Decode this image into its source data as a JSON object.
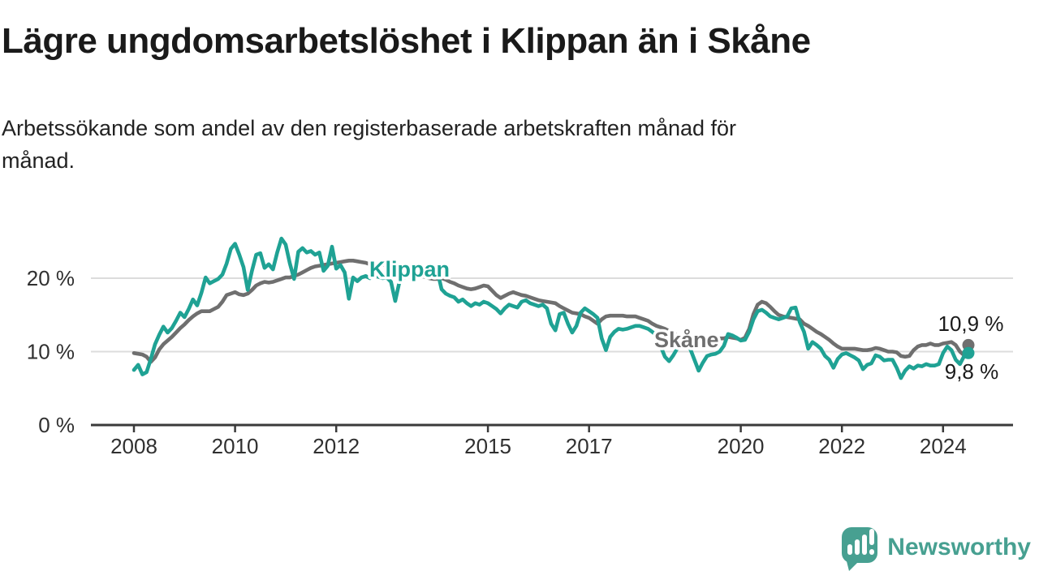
{
  "title": "Lägre ungdomsarbetslöshet i Klippan än i Skåne",
  "subtitle_lines": [
    "Arbetssökande som andel av den registerbaserade arbetskraften månad för",
    "månad."
  ],
  "branding": {
    "name": "Newsworthy",
    "logo_icon": "bar-chart-speech-bubble-icon",
    "color": "#47A091"
  },
  "colors": {
    "klippan": "#1FA294",
    "skane": "#6F6F6F",
    "grid": "#DCDCDC",
    "axis": "#3A3A3A",
    "text": "#1A1A1A"
  },
  "chart_data": {
    "type": "line",
    "title": "Lägre ungdomsarbetslöshet i Klippan än i Skåne",
    "xlabel": "",
    "ylabel": "Arbetssökande som andel av den registerbaserade arbetskraften, %",
    "x_unit": "month",
    "x_start_year": 2008,
    "x_end": "2024-07",
    "ylim": [
      0,
      27
    ],
    "grid": "horizontal",
    "x_axis_ticks": [
      2008,
      2010,
      2012,
      2015,
      2017,
      2020,
      2022,
      2024
    ],
    "y_ticks": [
      {
        "label": "0 %",
        "value": 0
      },
      {
        "label": "10 %",
        "value": 10
      },
      {
        "label": "20 %",
        "value": 20
      }
    ],
    "series": [
      {
        "name": "Klippan",
        "color": "#1FA294",
        "end_label": "9,8 %",
        "end_value": 9.8,
        "values": [
          7.5,
          8.2,
          6.9,
          7.2,
          9.0,
          11.0,
          12.3,
          13.4,
          12.6,
          13.2,
          14.2,
          15.3,
          14.7,
          15.8,
          17.1,
          16.3,
          18.0,
          20.1,
          19.3,
          19.6,
          19.9,
          20.5,
          22.0,
          24.0,
          24.7,
          23.2,
          21.5,
          18.4,
          21.0,
          23.2,
          23.4,
          21.4,
          21.9,
          21.2,
          23.5,
          25.4,
          24.6,
          22.0,
          19.9,
          23.6,
          24.1,
          23.5,
          23.7,
          23.2,
          23.5,
          21.0,
          21.7,
          24.3,
          21.3,
          21.8,
          20.8,
          17.2,
          20.1,
          19.6,
          20.1,
          20.3,
          20.0,
          20.5,
          20.2,
          20.0,
          20.1,
          19.5,
          16.9,
          19.5,
          20.0,
          20.2,
          20.4,
          20.3,
          20.1,
          20.4,
          20.6,
          20.8,
          21.0,
          18.5,
          17.9,
          17.6,
          17.4,
          16.8,
          17.1,
          16.6,
          16.2,
          16.6,
          16.4,
          16.8,
          16.6,
          16.2,
          15.8,
          15.2,
          15.9,
          16.4,
          16.2,
          16.0,
          16.8,
          17.0,
          16.6,
          16.4,
          16.2,
          16.4,
          15.9,
          13.8,
          12.9,
          15.1,
          15.3,
          13.8,
          12.6,
          13.5,
          15.3,
          15.9,
          15.5,
          15.1,
          14.6,
          11.8,
          10.2,
          12.0,
          12.7,
          13.1,
          13.0,
          13.1,
          13.3,
          13.5,
          13.5,
          13.3,
          13.1,
          12.7,
          12.2,
          10.7,
          9.3,
          8.7,
          9.5,
          10.5,
          11.0,
          10.8,
          10.4,
          8.9,
          7.4,
          8.5,
          9.4,
          9.6,
          9.7,
          10.0,
          10.8,
          12.4,
          12.2,
          11.9,
          11.5,
          11.6,
          12.7,
          14.4,
          15.5,
          15.7,
          15.3,
          14.8,
          14.6,
          14.4,
          14.6,
          14.8,
          15.9,
          16.0,
          14.0,
          12.7,
          10.4,
          11.3,
          10.9,
          10.4,
          9.4,
          8.9,
          7.8,
          9.0,
          9.6,
          9.8,
          9.5,
          9.2,
          8.8,
          7.6,
          8.2,
          8.4,
          9.5,
          9.3,
          8.8,
          8.9,
          8.9,
          7.8,
          6.4,
          7.4,
          8.0,
          7.7,
          8.1,
          8.0,
          8.3,
          8.1,
          8.1,
          8.3,
          9.8,
          10.7,
          10.2,
          8.9,
          8.3,
          9.4,
          9.8
        ]
      },
      {
        "name": "Skåne",
        "color": "#6F6F6F",
        "end_label": "10,9 %",
        "end_value": 10.9,
        "values": [
          9.8,
          9.7,
          9.6,
          9.3,
          8.6,
          9.2,
          10.3,
          11.0,
          11.5,
          12.0,
          12.6,
          13.2,
          13.7,
          14.3,
          14.8,
          15.2,
          15.5,
          15.5,
          15.5,
          15.8,
          16.1,
          16.8,
          17.7,
          17.9,
          18.1,
          17.8,
          17.7,
          17.9,
          18.4,
          19.0,
          19.3,
          19.5,
          19.4,
          19.5,
          19.7,
          19.9,
          20.1,
          20.1,
          20.3,
          20.5,
          20.8,
          21.1,
          21.4,
          21.6,
          21.7,
          21.8,
          21.9,
          22.0,
          22.1,
          22.2,
          22.3,
          22.4,
          22.4,
          22.3,
          22.2,
          22.1,
          21.9,
          21.8,
          21.7,
          21.8,
          21.9,
          21.7,
          21.5,
          21.3,
          21.2,
          21.0,
          20.8,
          20.6,
          20.4,
          20.2,
          20.0,
          19.9,
          19.9,
          20.0,
          19.8,
          19.5,
          19.3,
          19.0,
          18.8,
          18.6,
          18.5,
          18.6,
          18.8,
          19.0,
          18.9,
          18.3,
          17.7,
          17.3,
          17.6,
          17.9,
          18.1,
          17.9,
          17.7,
          17.6,
          17.4,
          17.2,
          17.0,
          16.9,
          16.8,
          16.7,
          16.6,
          16.2,
          15.9,
          15.6,
          15.3,
          15.2,
          15.1,
          14.8,
          14.6,
          14.2,
          13.8,
          14.4,
          14.8,
          14.9,
          14.9,
          14.9,
          14.9,
          14.8,
          14.8,
          14.8,
          14.6,
          14.4,
          14.2,
          13.8,
          13.5,
          13.3,
          13.1,
          12.8,
          12.5,
          12.2,
          12.0,
          11.9,
          11.8,
          11.7,
          11.6,
          11.5,
          11.5,
          11.6,
          11.7,
          11.8,
          11.8,
          12.0,
          11.9,
          11.8,
          11.6,
          11.9,
          13.1,
          15.1,
          16.4,
          16.8,
          16.6,
          16.1,
          15.5,
          15.0,
          14.8,
          14.7,
          14.6,
          14.5,
          14.4,
          13.8,
          13.5,
          13.1,
          12.7,
          12.4,
          12.0,
          11.6,
          11.1,
          10.7,
          10.4,
          10.4,
          10.4,
          10.4,
          10.3,
          10.2,
          10.2,
          10.3,
          10.5,
          10.4,
          10.2,
          10.0,
          10.0,
          9.9,
          9.4,
          9.3,
          9.4,
          10.2,
          10.7,
          10.9,
          10.9,
          11.1,
          10.9,
          10.9,
          11.1,
          11.2,
          11.3,
          10.9,
          10.0,
          9.5,
          10.9
        ]
      }
    ]
  }
}
